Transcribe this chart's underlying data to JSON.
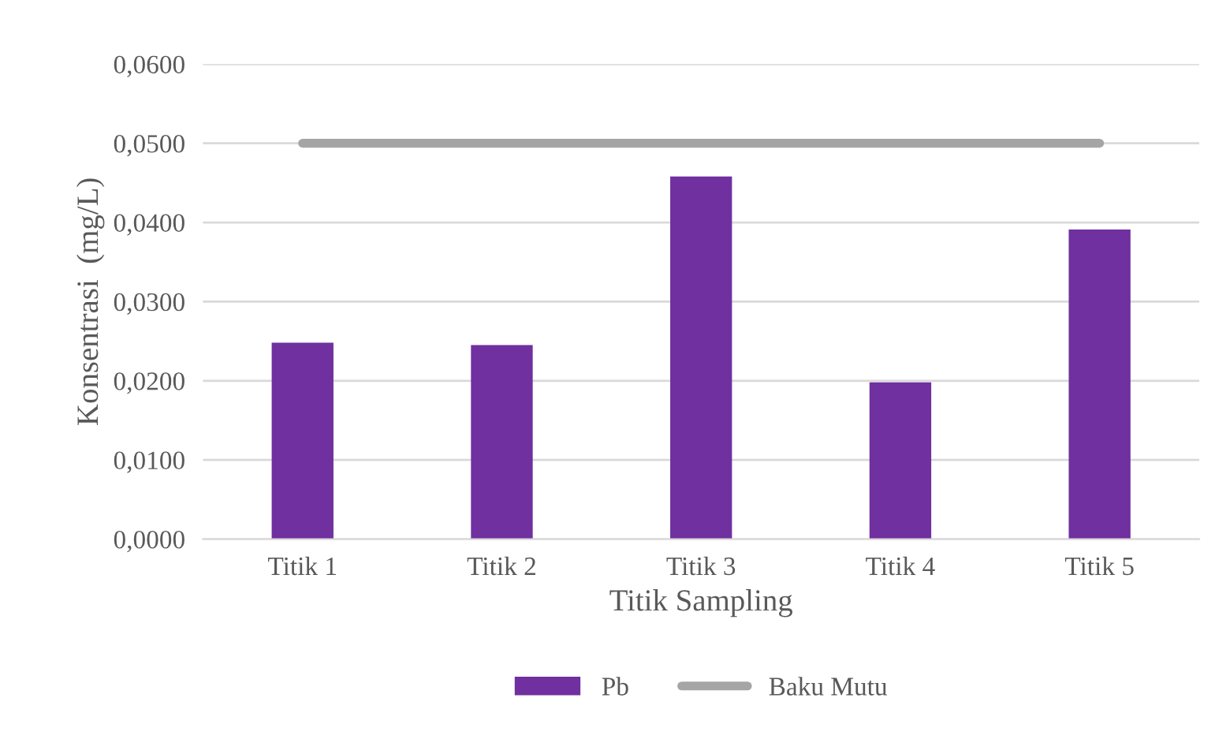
{
  "chart_data": {
    "type": "bar",
    "xlabel": "Titik Sampling",
    "ylabel": "Konsentrasi  (mg/L)",
    "categories": [
      "Titik 1",
      "Titik 2",
      "Titik 3",
      "Titik 4",
      "Titik 5"
    ],
    "series": [
      {
        "name": "Pb",
        "color": "#7030a0",
        "values": [
          0.0248,
          0.0245,
          0.0458,
          0.0198,
          0.0391
        ]
      },
      {
        "name": "Baku Mutu",
        "type": "line",
        "color": "#a5a5a5",
        "values": [
          0.05,
          0.05,
          0.05,
          0.05,
          0.05
        ]
      }
    ],
    "ylim": [
      0,
      0.06
    ],
    "yticks": [
      {
        "value": 0,
        "label": "0,0000"
      },
      {
        "value": 0.01,
        "label": "0,0100"
      },
      {
        "value": 0.02,
        "label": "0,0200"
      },
      {
        "value": 0.03,
        "label": "0,0300"
      },
      {
        "value": 0.04,
        "label": "0,0400"
      },
      {
        "value": 0.05,
        "label": "0,0500"
      },
      {
        "value": 0.06,
        "label": "0,0600"
      }
    ],
    "grid": "y",
    "legend": "bottom",
    "marker": "none",
    "line_style": "solid"
  }
}
